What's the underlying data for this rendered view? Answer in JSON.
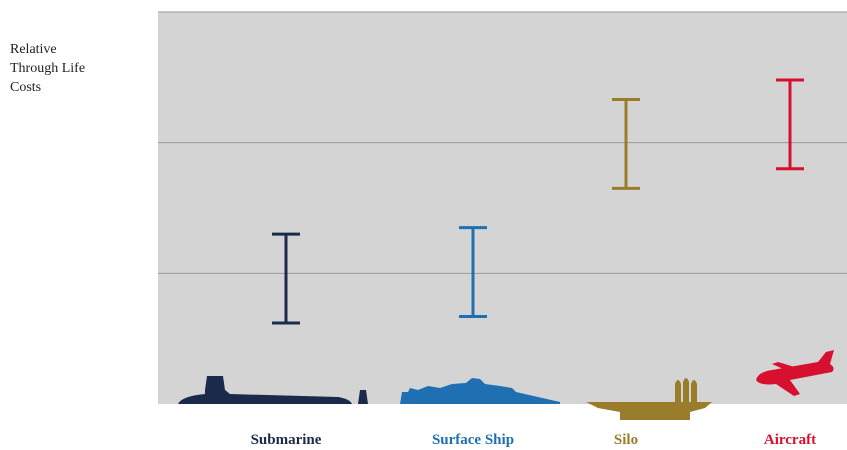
{
  "chart_data": {
    "type": "range",
    "ylabel_lines": [
      "Relative",
      "Through Life",
      "Costs"
    ],
    "ylim": [
      0,
      3
    ],
    "gridlines": [
      1,
      2,
      3
    ],
    "grid": true,
    "categories": [
      {
        "name": "Submarine",
        "icon": "submarine-icon",
        "color": "#1b2a4a",
        "low": 0.62,
        "high": 1.3
      },
      {
        "name": "Surface Ship",
        "icon": "surface-ship-icon",
        "color": "#1f6fb3",
        "low": 0.67,
        "high": 1.35
      },
      {
        "name": "Silo",
        "icon": "silo-icon",
        "color": "#9a7d2a",
        "low": 1.65,
        "high": 2.33
      },
      {
        "name": "Aircraft",
        "icon": "aircraft-icon",
        "color": "#d6102e",
        "low": 1.8,
        "high": 2.48
      }
    ]
  }
}
